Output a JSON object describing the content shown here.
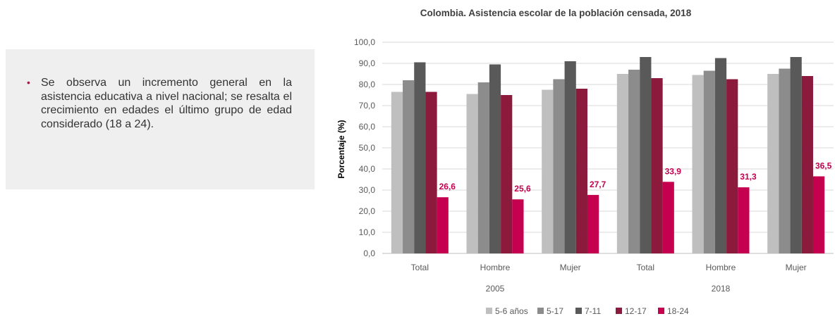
{
  "note": {
    "text": "Se observa un incremento general en la asistencia educativa a nivel nacional; se resalta el crecimiento en edades el último grupo de edad considerado (18 a 24)."
  },
  "colors": {
    "bullet": "#b0124b",
    "series": [
      "#bfbfbf",
      "#8c8c8c",
      "#595959",
      "#8b1a3c",
      "#c4004f"
    ],
    "label": "#c4004f"
  },
  "chart_data": {
    "type": "bar",
    "title": "Colombia. Asistencia escolar de la población censada, 2018",
    "ylabel": "Porcentaje (%)",
    "xlabel": "",
    "ylim": [
      0,
      100
    ],
    "yticks": [
      "0,0",
      "10,0",
      "20,0",
      "30,0",
      "40,0",
      "50,0",
      "60,0",
      "70,0",
      "80,0",
      "90,0",
      "100,0"
    ],
    "categories": [
      "Total",
      "Hombre",
      "Mujer",
      "Total",
      "Hombre",
      "Mujer"
    ],
    "groups": [
      {
        "label": "2005",
        "span": [
          0,
          2
        ]
      },
      {
        "label": "2018",
        "span": [
          3,
          5
        ]
      }
    ],
    "series": [
      {
        "name": "5-6 años",
        "values": [
          76.5,
          75.5,
          77.5,
          85.0,
          84.5,
          85.0
        ]
      },
      {
        "name": "5-17",
        "values": [
          82.0,
          81.0,
          82.5,
          87.0,
          86.5,
          87.5
        ]
      },
      {
        "name": "7-11",
        "values": [
          90.5,
          89.5,
          91.0,
          93.0,
          92.5,
          93.0
        ]
      },
      {
        "name": "12-17",
        "values": [
          76.5,
          75.0,
          78.0,
          83.0,
          82.5,
          84.0
        ]
      },
      {
        "name": "18-24",
        "values": [
          26.6,
          25.6,
          27.7,
          33.9,
          31.3,
          36.5
        ]
      }
    ],
    "data_labels": [
      "26,6",
      "25,6",
      "27,7",
      "33,9",
      "31,3",
      "36,5"
    ],
    "grid": true,
    "legend": "bottom"
  }
}
